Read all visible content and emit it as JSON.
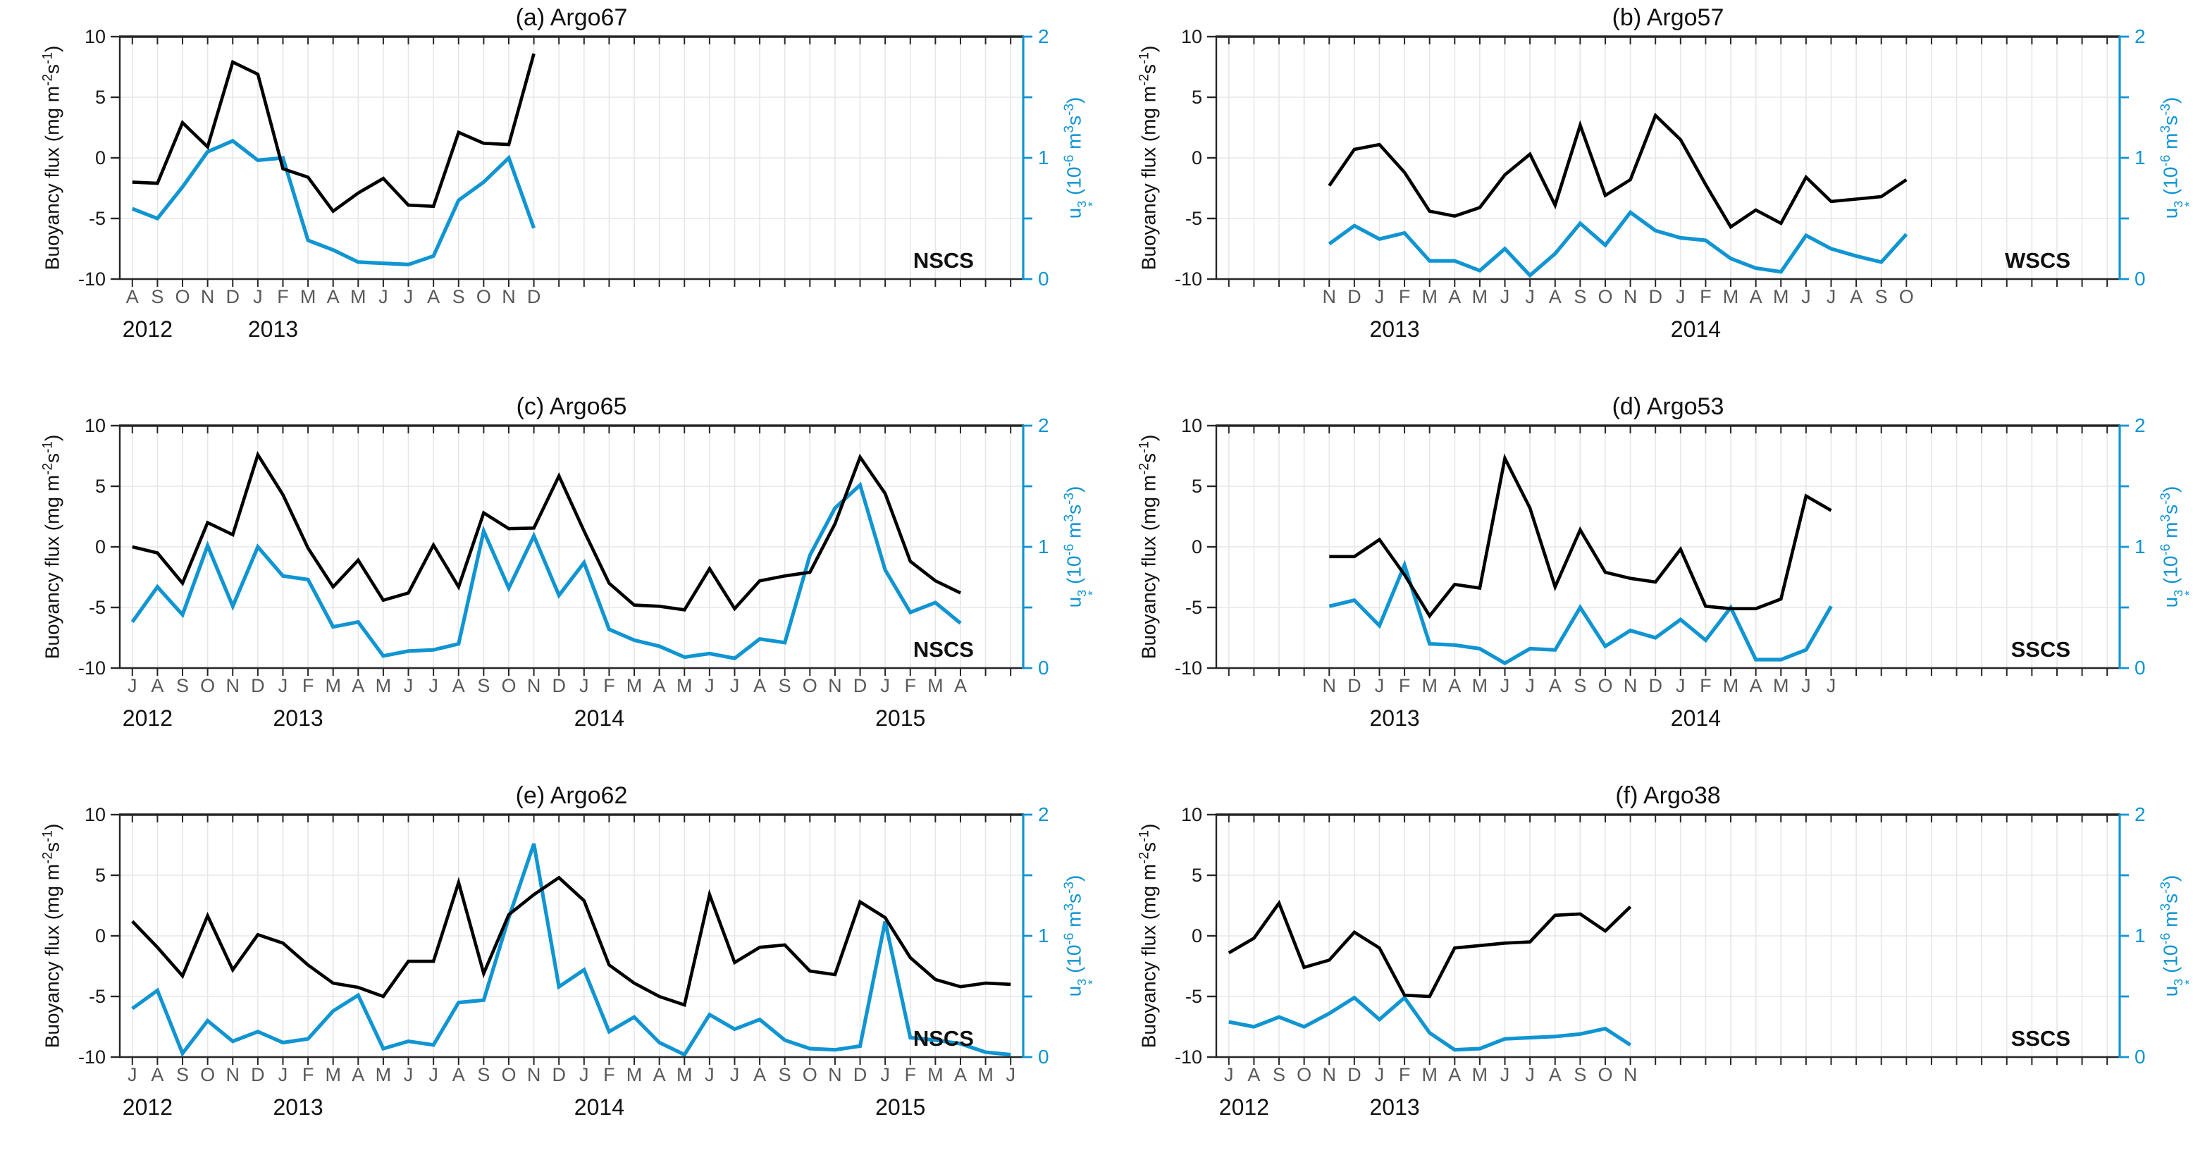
{
  "figure": {
    "background": "#ffffff",
    "left_axis_title_parts": [
      {
        "t": "Buoyancy flux (mg m"
      },
      {
        "sup": "-2"
      },
      {
        "t": "s"
      },
      {
        "sup": "-1"
      },
      {
        "t": ")"
      }
    ],
    "right_axis_title_parts": [
      {
        "t": "u"
      },
      {
        "stack": {
          "sup": "3",
          "sub": "*"
        }
      },
      {
        "t": " (10"
      },
      {
        "sup": "-6"
      },
      {
        "t": " m"
      },
      {
        "sup": "3"
      },
      {
        "t": "s"
      },
      {
        "sup": "-3"
      },
      {
        "t": ")"
      }
    ],
    "colors": {
      "flux_line": "#000000",
      "ustar_line": "#1095d2",
      "grid": "#e7e7e7",
      "axis": "#262626",
      "month_label": "#595959",
      "year_label": "#111111",
      "tick_label_left": "#1a1a1a",
      "title": "#111111",
      "region_label": "#111111"
    },
    "y_left_axis": {
      "min": -10,
      "max": 10,
      "tick_values": [
        10,
        5,
        0,
        -5,
        -10
      ]
    },
    "y_right_axis": {
      "min": 0,
      "max": 2,
      "tick_values": [
        2,
        1,
        0
      ],
      "minor_tick_values": [
        1.5,
        0.5
      ]
    },
    "h_gridline_values": [
      5,
      0,
      -5
    ],
    "total_month_slots": 36,
    "series_names": {
      "black": "Buoyancy flux",
      "cyan": "u*3 (wind work)"
    }
  },
  "chart_data": [
    {
      "panel": "a",
      "type": "line",
      "title": "(a) Argo67",
      "region": "NSCS",
      "offset_slots": 0,
      "months": [
        "A",
        "S",
        "O",
        "N",
        "D",
        "J",
        "F",
        "M",
        "A",
        "M",
        "J",
        "J",
        "A",
        "S",
        "O",
        "N",
        "D"
      ],
      "year_labels": [
        {
          "text": "2012",
          "slot": 0
        },
        {
          "text": "2013",
          "slot": 5
        }
      ],
      "series": [
        {
          "name": "Buoyancy flux",
          "axis": "left",
          "values": [
            -2.0,
            -2.1,
            2.9,
            0.9,
            7.9,
            6.9,
            -0.9,
            -1.6,
            -4.4,
            -2.9,
            -1.7,
            -3.9,
            -4.0,
            2.1,
            1.2,
            1.1,
            8.6
          ]
        },
        {
          "name": "u*3",
          "axis": "right",
          "values": [
            0.58,
            0.5,
            0.76,
            1.05,
            1.14,
            0.98,
            1.0,
            0.32,
            0.24,
            0.14,
            0.13,
            0.12,
            0.19,
            0.65,
            0.8,
            1.0,
            0.42
          ]
        }
      ]
    },
    {
      "panel": "b",
      "type": "line",
      "title": "(b) Argo57",
      "region": "WSCS",
      "offset_slots": 4,
      "months": [
        "N",
        "D",
        "J",
        "F",
        "M",
        "A",
        "M",
        "J",
        "J",
        "A",
        "S",
        "O",
        "N",
        "D",
        "J",
        "F",
        "M",
        "A",
        "M",
        "J",
        "J",
        "A",
        "S",
        "O"
      ],
      "year_labels": [
        {
          "text": "2013",
          "slot": 6
        },
        {
          "text": "2014",
          "slot": 18
        }
      ],
      "series": [
        {
          "name": "Buoyancy flux",
          "axis": "left",
          "values": [
            -2.3,
            0.7,
            1.1,
            -1.2,
            -4.4,
            -4.8,
            -4.1,
            -1.4,
            0.3,
            -3.9,
            2.7,
            -3.1,
            -1.8,
            3.5,
            1.5,
            -2.2,
            -5.7,
            -4.3,
            -5.4,
            -1.6,
            -3.6,
            -3.4,
            -3.2,
            -1.8
          ]
        },
        {
          "name": "u*3",
          "axis": "right",
          "values": [
            0.29,
            0.44,
            0.33,
            0.38,
            0.15,
            0.15,
            0.07,
            0.25,
            0.03,
            0.21,
            0.46,
            0.28,
            0.55,
            0.4,
            0.34,
            0.32,
            0.17,
            0.09,
            0.06,
            0.36,
            0.25,
            0.19,
            0.14,
            0.37
          ]
        }
      ]
    },
    {
      "panel": "c",
      "type": "line",
      "title": "(c) Argo65",
      "region": "NSCS",
      "offset_slots": 0,
      "months": [
        "J",
        "A",
        "S",
        "O",
        "N",
        "D",
        "J",
        "F",
        "M",
        "A",
        "M",
        "J",
        "J",
        "A",
        "S",
        "O",
        "N",
        "D",
        "J",
        "F",
        "M",
        "A",
        "M",
        "J",
        "J",
        "A",
        "S",
        "O",
        "N",
        "D",
        "J",
        "F",
        "M",
        "A"
      ],
      "year_labels": [
        {
          "text": "2012",
          "slot": 0
        },
        {
          "text": "2013",
          "slot": 6
        },
        {
          "text": "2014",
          "slot": 18
        },
        {
          "text": "2015",
          "slot": 30
        }
      ],
      "series": [
        {
          "name": "Buoyancy flux",
          "axis": "left",
          "values": [
            0.0,
            -0.5,
            -3.0,
            2.0,
            1.0,
            7.6,
            4.3,
            -0.1,
            -3.3,
            -1.1,
            -4.4,
            -3.8,
            0.15,
            -3.3,
            2.8,
            1.5,
            1.55,
            5.85,
            1.3,
            -3.0,
            -4.8,
            -4.9,
            -5.2,
            -1.8,
            -5.1,
            -2.8,
            -2.4,
            -2.1,
            1.9,
            7.4,
            4.4,
            -1.2,
            -2.8,
            -3.8
          ]
        },
        {
          "name": "u*3",
          "axis": "right",
          "values": [
            0.38,
            0.67,
            0.44,
            1.01,
            0.51,
            1.0,
            0.76,
            0.73,
            0.34,
            0.38,
            0.1,
            0.14,
            0.15,
            0.2,
            1.13,
            0.66,
            1.09,
            0.6,
            0.87,
            0.32,
            0.23,
            0.18,
            0.09,
            0.12,
            0.08,
            0.24,
            0.21,
            0.93,
            1.32,
            1.51,
            0.81,
            0.46,
            0.54,
            0.37
          ]
        }
      ]
    },
    {
      "panel": "d",
      "type": "line",
      "title": "(d) Argo53",
      "region": "SSCS",
      "offset_slots": 4,
      "months": [
        "N",
        "D",
        "J",
        "F",
        "M",
        "A",
        "M",
        "J",
        "J",
        "A",
        "S",
        "O",
        "N",
        "D",
        "J",
        "F",
        "M",
        "A",
        "M",
        "J",
        "J"
      ],
      "year_labels": [
        {
          "text": "2013",
          "slot": 6
        },
        {
          "text": "2014",
          "slot": 18
        }
      ],
      "series": [
        {
          "name": "Buoyancy flux",
          "axis": "left",
          "values": [
            -0.8,
            -0.8,
            0.6,
            -2.3,
            -5.7,
            -3.1,
            -3.4,
            7.3,
            3.2,
            -3.3,
            1.4,
            -2.1,
            -2.6,
            -2.9,
            -0.2,
            -4.9,
            -5.1,
            -5.1,
            -4.3,
            4.2,
            3.0
          ]
        },
        {
          "name": "u*3",
          "axis": "right",
          "values": [
            0.51,
            0.56,
            0.35,
            0.85,
            0.2,
            0.19,
            0.16,
            0.04,
            0.16,
            0.15,
            0.5,
            0.18,
            0.31,
            0.25,
            0.4,
            0.23,
            0.5,
            0.07,
            0.07,
            0.15,
            0.51
          ]
        }
      ]
    },
    {
      "panel": "e",
      "type": "line",
      "title": "(e) Argo62",
      "region": "NSCS",
      "offset_slots": 0,
      "months": [
        "J",
        "A",
        "S",
        "O",
        "N",
        "D",
        "J",
        "F",
        "M",
        "A",
        "M",
        "J",
        "J",
        "A",
        "S",
        "O",
        "N",
        "D",
        "J",
        "F",
        "M",
        "A",
        "M",
        "J",
        "J",
        "A",
        "S",
        "O",
        "N",
        "D",
        "J",
        "F",
        "M",
        "A",
        "M",
        "J"
      ],
      "year_labels": [
        {
          "text": "2012",
          "slot": 0
        },
        {
          "text": "2013",
          "slot": 6
        },
        {
          "text": "2014",
          "slot": 18
        },
        {
          "text": "2015",
          "slot": 30
        }
      ],
      "series": [
        {
          "name": "Buoyancy flux",
          "axis": "left",
          "values": [
            1.2,
            -0.95,
            -3.3,
            1.65,
            -2.8,
            0.1,
            -0.6,
            -2.4,
            -3.9,
            -4.25,
            -5.0,
            -2.1,
            -2.1,
            4.4,
            -3.1,
            1.75,
            3.4,
            4.8,
            2.9,
            -2.4,
            -3.9,
            -5.0,
            -5.7,
            3.4,
            -2.2,
            -0.95,
            -0.75,
            -2.9,
            -3.2,
            2.8,
            1.5,
            -1.8,
            -3.6,
            -4.2,
            -3.9,
            -4.0
          ]
        },
        {
          "name": "u*3",
          "axis": "right",
          "values": [
            0.4,
            0.55,
            0.03,
            0.3,
            0.13,
            0.21,
            0.12,
            0.15,
            0.38,
            0.51,
            0.07,
            0.13,
            0.1,
            0.45,
            0.47,
            1.15,
            1.76,
            0.58,
            0.72,
            0.21,
            0.33,
            0.12,
            0.02,
            0.35,
            0.23,
            0.31,
            0.14,
            0.07,
            0.06,
            0.09,
            1.12,
            0.16,
            0.14,
            0.11,
            0.04,
            0.02
          ]
        }
      ]
    },
    {
      "panel": "f",
      "type": "line",
      "title": "(f) Argo38",
      "region": "SSCS",
      "offset_slots": 0,
      "months": [
        "J",
        "A",
        "S",
        "O",
        "N",
        "D",
        "J",
        "F",
        "M",
        "A",
        "M",
        "J",
        "J",
        "A",
        "S",
        "O",
        "N"
      ],
      "year_labels": [
        {
          "text": "2012",
          "slot": 0
        },
        {
          "text": "2013",
          "slot": 6
        }
      ],
      "series": [
        {
          "name": "Buoyancy flux",
          "axis": "left",
          "values": [
            -1.4,
            -0.2,
            2.7,
            -2.6,
            -2.0,
            0.3,
            -1.0,
            -4.9,
            -5.0,
            -1.0,
            -0.8,
            -0.6,
            -0.5,
            1.7,
            1.8,
            0.4,
            2.4
          ]
        },
        {
          "name": "u*3",
          "axis": "right",
          "values": [
            0.29,
            0.25,
            0.33,
            0.25,
            0.36,
            0.49,
            0.31,
            0.49,
            0.2,
            0.06,
            0.07,
            0.15,
            0.16,
            0.17,
            0.19,
            0.235,
            0.1
          ]
        }
      ]
    }
  ]
}
